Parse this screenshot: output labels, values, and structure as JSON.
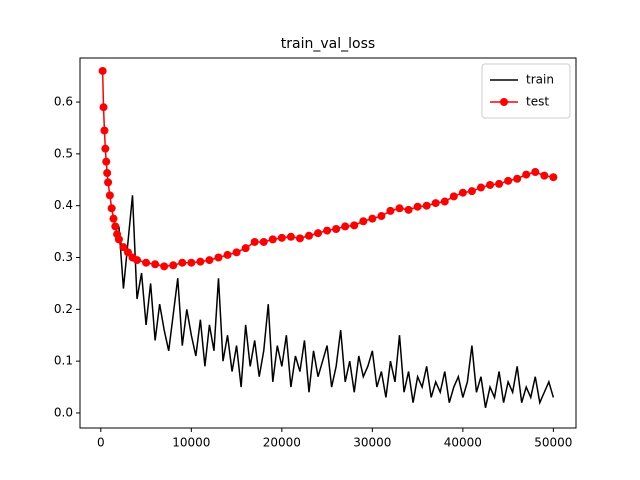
{
  "chart_data": {
    "type": "line",
    "title": "train_val_loss",
    "series": [
      {
        "name": "train",
        "color": "#000000",
        "marker": false,
        "x": [
          2000,
          2500,
          3000,
          3500,
          4000,
          4500,
          5000,
          5500,
          6000,
          6500,
          7000,
          7500,
          8000,
          8500,
          9000,
          9500,
          10000,
          10500,
          11000,
          11500,
          12000,
          12500,
          13000,
          13500,
          14000,
          14500,
          15000,
          15500,
          16000,
          16500,
          17000,
          17500,
          18000,
          18500,
          19000,
          19500,
          20000,
          20500,
          21000,
          21500,
          22000,
          22500,
          23000,
          23500,
          24000,
          24500,
          25000,
          25500,
          26000,
          26500,
          27000,
          27500,
          28000,
          28500,
          29000,
          29500,
          30000,
          30500,
          31000,
          31500,
          32000,
          32500,
          33000,
          33500,
          34000,
          34500,
          35000,
          35500,
          36000,
          36500,
          37000,
          37500,
          38000,
          38500,
          39000,
          39500,
          40000,
          40500,
          41000,
          41500,
          42000,
          42500,
          43000,
          43500,
          44000,
          44500,
          45000,
          45500,
          46000,
          46500,
          47000,
          47500,
          48000,
          48500,
          49000,
          49500,
          50000
        ],
        "values": [
          0.36,
          0.24,
          0.33,
          0.42,
          0.22,
          0.27,
          0.17,
          0.25,
          0.14,
          0.21,
          0.16,
          0.12,
          0.19,
          0.26,
          0.13,
          0.2,
          0.15,
          0.11,
          0.18,
          0.09,
          0.17,
          0.12,
          0.26,
          0.1,
          0.15,
          0.08,
          0.13,
          0.05,
          0.17,
          0.09,
          0.14,
          0.07,
          0.12,
          0.21,
          0.06,
          0.13,
          0.09,
          0.15,
          0.05,
          0.11,
          0.08,
          0.14,
          0.04,
          0.12,
          0.07,
          0.1,
          0.13,
          0.05,
          0.09,
          0.16,
          0.06,
          0.1,
          0.04,
          0.11,
          0.07,
          0.09,
          0.12,
          0.05,
          0.08,
          0.03,
          0.1,
          0.06,
          0.15,
          0.04,
          0.08,
          0.02,
          0.07,
          0.05,
          0.09,
          0.03,
          0.06,
          0.04,
          0.08,
          0.02,
          0.05,
          0.07,
          0.03,
          0.06,
          0.13,
          0.04,
          0.07,
          0.01,
          0.05,
          0.03,
          0.08,
          0.02,
          0.06,
          0.04,
          0.09,
          0.02,
          0.05,
          0.03,
          0.07,
          0.02,
          0.04,
          0.06,
          0.03
        ]
      },
      {
        "name": "test",
        "color": "#ff0000",
        "marker": true,
        "x": [
          200,
          300,
          400,
          500,
          600,
          700,
          800,
          1000,
          1200,
          1400,
          1600,
          1800,
          2000,
          2500,
          3000,
          3500,
          4000,
          5000,
          6000,
          7000,
          8000,
          9000,
          10000,
          11000,
          12000,
          13000,
          14000,
          15000,
          16000,
          17000,
          18000,
          19000,
          20000,
          21000,
          22000,
          23000,
          24000,
          25000,
          26000,
          27000,
          28000,
          29000,
          30000,
          31000,
          32000,
          33000,
          34000,
          35000,
          36000,
          37000,
          38000,
          39000,
          40000,
          41000,
          42000,
          43000,
          44000,
          45000,
          46000,
          47000,
          48000,
          49000,
          50000
        ],
        "values": [
          0.66,
          0.59,
          0.545,
          0.51,
          0.485,
          0.463,
          0.445,
          0.42,
          0.395,
          0.375,
          0.36,
          0.345,
          0.335,
          0.32,
          0.31,
          0.3,
          0.295,
          0.29,
          0.287,
          0.283,
          0.285,
          0.29,
          0.29,
          0.292,
          0.295,
          0.3,
          0.305,
          0.31,
          0.318,
          0.33,
          0.33,
          0.335,
          0.338,
          0.34,
          0.337,
          0.342,
          0.347,
          0.352,
          0.355,
          0.36,
          0.362,
          0.37,
          0.375,
          0.38,
          0.39,
          0.395,
          0.392,
          0.398,
          0.4,
          0.405,
          0.408,
          0.418,
          0.425,
          0.428,
          0.435,
          0.44,
          0.442,
          0.448,
          0.452,
          0.46,
          0.465,
          0.458,
          0.455
        ]
      }
    ],
    "xlim": [
      -2300,
      52500
    ],
    "xticks": [
      0,
      10000,
      20000,
      30000,
      40000,
      50000
    ],
    "ylim": [
      -0.029,
      0.685
    ],
    "yticks": [
      {
        "value": 0,
        "label": "0.0"
      },
      0.1,
      0.2,
      0.3,
      0.4,
      0.5,
      0.6
    ],
    "legend": "upper right"
  }
}
